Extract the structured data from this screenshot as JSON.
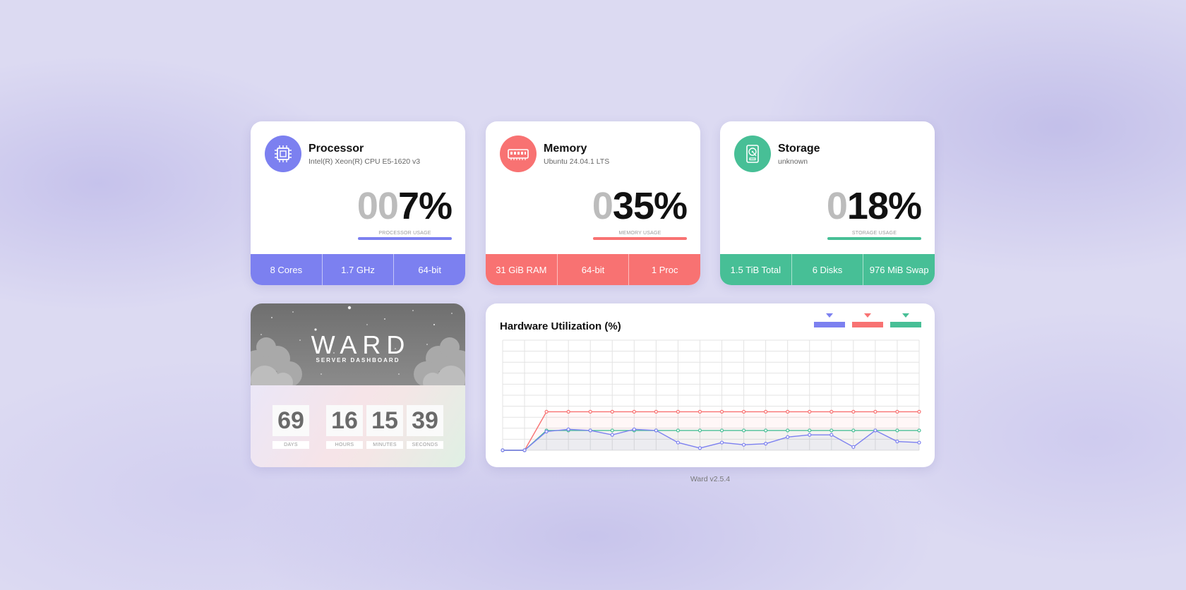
{
  "colors": {
    "processor": "#7c80f0",
    "memory": "#f87272",
    "storage": "#47bf96"
  },
  "processor": {
    "icon": "cpu-icon",
    "title": "Processor",
    "subtitle": "Intel(R) Xeon(R) CPU E5-1620 v3",
    "usage_pad": "00",
    "usage_value": "7%",
    "caption": "PROCESSOR USAGE",
    "footer": [
      "8 Cores",
      "1.7 GHz",
      "64-bit"
    ]
  },
  "memory": {
    "icon": "ram-icon",
    "title": "Memory",
    "subtitle": "Ubuntu 24.04.1 LTS",
    "usage_pad": "0",
    "usage_value": "35%",
    "caption": "MEMORY USAGE",
    "footer": [
      "31 GiB RAM",
      "64-bit",
      "1 Proc"
    ]
  },
  "storage": {
    "icon": "hard-drive-icon",
    "title": "Storage",
    "subtitle": "unknown",
    "usage_pad": "0",
    "usage_value": "18%",
    "caption": "STORAGE USAGE",
    "footer": [
      "1.5 TiB Total",
      "6 Disks",
      "976 MiB Swap"
    ]
  },
  "ward": {
    "title": "WARD",
    "subtitle": "SERVER DASHBOARD",
    "countdown": [
      {
        "value": "69",
        "label": "DAYS"
      },
      {
        "value": "16",
        "label": "HOURS"
      },
      {
        "value": "15",
        "label": "MINUTES"
      },
      {
        "value": "39",
        "label": "SECONDS"
      }
    ]
  },
  "chart_data": {
    "type": "line",
    "title": "Hardware Utilization (%)",
    "xlabel": "",
    "ylabel": "",
    "ylim": [
      0,
      100
    ],
    "grid": true,
    "legend": "top-right",
    "x": [
      1,
      2,
      3,
      4,
      5,
      6,
      7,
      8,
      9,
      10,
      11,
      12,
      13,
      14,
      15,
      16,
      17,
      18,
      19,
      20
    ],
    "series": [
      {
        "color": "#7c80f0",
        "values": [
          0,
          0,
          17,
          19,
          18,
          14,
          19,
          18,
          7,
          2,
          7,
          5,
          6,
          12,
          14,
          14,
          3,
          18,
          8,
          7
        ]
      },
      {
        "color": "#f87272",
        "values": [
          0,
          0,
          35,
          35,
          35,
          35,
          35,
          35,
          35,
          35,
          35,
          35,
          35,
          35,
          35,
          35,
          35,
          35,
          35,
          35
        ]
      },
      {
        "color": "#47bf96",
        "values": [
          0,
          0,
          18,
          18,
          18,
          18,
          18,
          18,
          18,
          18,
          18,
          18,
          18,
          18,
          18,
          18,
          18,
          18,
          18,
          18
        ]
      }
    ]
  },
  "footer": {
    "version": "Ward v2.5.4"
  }
}
